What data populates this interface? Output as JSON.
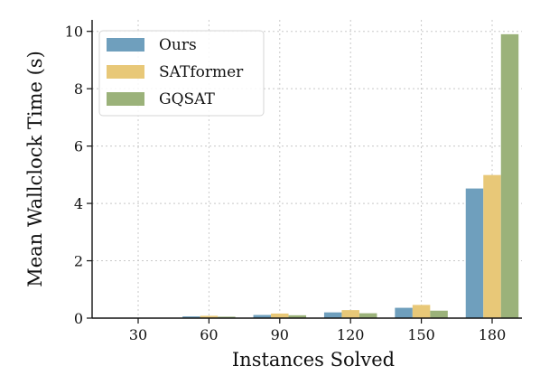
{
  "chart_data": {
    "type": "bar",
    "categories": [
      "30",
      "60",
      "90",
      "120",
      "150",
      "180"
    ],
    "series": [
      {
        "name": "Ours",
        "color": "#6f9fbd",
        "values": [
          0.01,
          0.06,
          0.11,
          0.2,
          0.36,
          4.52
        ]
      },
      {
        "name": "SATformer",
        "color": "#e8c878",
        "values": [
          0.01,
          0.08,
          0.16,
          0.28,
          0.46,
          4.99
        ]
      },
      {
        "name": "GQSAT",
        "color": "#9bb27a",
        "values": [
          0.01,
          0.05,
          0.1,
          0.17,
          0.26,
          9.9
        ]
      }
    ],
    "xlabel": "Instances Solved",
    "ylabel": "Mean Wallclock  Time  (s)",
    "ylim": [
      0,
      10.4
    ],
    "yticks": [
      0,
      2,
      4,
      6,
      8,
      10
    ],
    "grid": true,
    "legend_position": "top-left"
  }
}
